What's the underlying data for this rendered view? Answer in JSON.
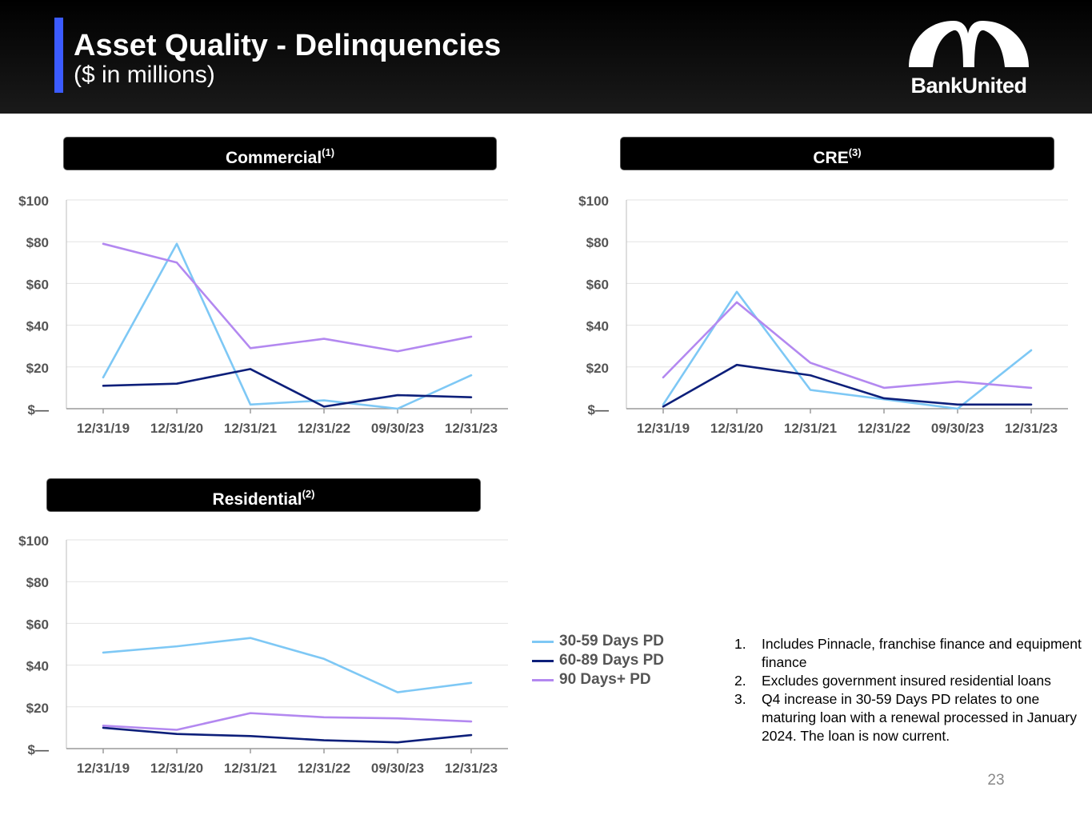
{
  "header": {
    "title": "Asset Quality - Delinquencies",
    "subtitle": "($ in millions)",
    "logo_text": "BankUnited",
    "accent_color": "#3b5bff"
  },
  "panels": {
    "commercial": {
      "label": "Commercial",
      "note": "(1)"
    },
    "cre": {
      "label": "CRE",
      "note": "(3)"
    },
    "residential": {
      "label": "Residential",
      "note": "(2)"
    }
  },
  "legend": [
    {
      "name": "30-59 Days PD",
      "color": "#7ec8f5"
    },
    {
      "name": "60-89 Days PD",
      "color": "#0d1f7a"
    },
    {
      "name": "90 Days+ PD",
      "color": "#b388f0"
    }
  ],
  "footnotes": [
    {
      "num": "1.",
      "text": "Includes Pinnacle, franchise finance and equipment finance"
    },
    {
      "num": "2.",
      "text": "Excludes government insured residential loans"
    },
    {
      "num": "3.",
      "text": "Q4 increase in 30-59 Days PD relates to one maturing loan with a renewal processed in January 2024.  The loan is now current."
    }
  ],
  "page_number": "23",
  "chart_data": [
    {
      "id": "commercial",
      "type": "line",
      "title": "Commercial(1)",
      "categories": [
        "12/31/19",
        "12/31/20",
        "12/31/21",
        "12/31/22",
        "09/30/23",
        "12/31/23"
      ],
      "y_tick_labels": [
        "$—",
        "$20",
        "$40",
        "$60",
        "$80",
        "$100"
      ],
      "y_ticks": [
        0,
        20,
        40,
        60,
        80,
        100
      ],
      "ylim": [
        0,
        100
      ],
      "series": [
        {
          "name": "30-59 Days PD",
          "color": "#7ec8f5",
          "values": [
            15,
            79,
            2,
            4,
            0,
            16
          ]
        },
        {
          "name": "60-89 Days PD",
          "color": "#0d1f7a",
          "values": [
            11,
            12,
            19,
            1,
            6.5,
            5.5
          ]
        },
        {
          "name": "90 Days+ PD",
          "color": "#b388f0",
          "values": [
            79,
            70,
            29,
            33.5,
            27.5,
            34.5
          ]
        }
      ]
    },
    {
      "id": "cre",
      "type": "line",
      "title": "CRE(3)",
      "categories": [
        "12/31/19",
        "12/31/20",
        "12/31/21",
        "12/31/22",
        "09/30/23",
        "12/31/23"
      ],
      "y_tick_labels": [
        "$—",
        "$20",
        "$40",
        "$60",
        "$80",
        "$100"
      ],
      "y_ticks": [
        0,
        20,
        40,
        60,
        80,
        100
      ],
      "ylim": [
        0,
        100
      ],
      "series": [
        {
          "name": "30-59 Days PD",
          "color": "#7ec8f5",
          "values": [
            2,
            56,
            9,
            4.5,
            0,
            28
          ]
        },
        {
          "name": "60-89 Days PD",
          "color": "#0d1f7a",
          "values": [
            1,
            21,
            16,
            5,
            2,
            2
          ]
        },
        {
          "name": "90 Days+ PD",
          "color": "#b388f0",
          "values": [
            15,
            51,
            22,
            10,
            13,
            10
          ]
        }
      ]
    },
    {
      "id": "residential",
      "type": "line",
      "title": "Residential(2)",
      "categories": [
        "12/31/19",
        "12/31/20",
        "12/31/21",
        "12/31/22",
        "09/30/23",
        "12/31/23"
      ],
      "y_tick_labels": [
        "$—",
        "$20",
        "$40",
        "$60",
        "$80",
        "$100"
      ],
      "y_ticks": [
        0,
        20,
        40,
        60,
        80,
        100
      ],
      "ylim": [
        0,
        100
      ],
      "series": [
        {
          "name": "30-59 Days PD",
          "color": "#7ec8f5",
          "values": [
            46,
            49,
            53,
            43,
            27,
            31.5
          ]
        },
        {
          "name": "60-89 Days PD",
          "color": "#0d1f7a",
          "values": [
            10,
            7,
            6,
            4,
            3,
            6.5
          ]
        },
        {
          "name": "90 Days+ PD",
          "color": "#b388f0",
          "values": [
            11,
            9,
            17,
            15,
            14.5,
            13
          ]
        }
      ]
    }
  ]
}
